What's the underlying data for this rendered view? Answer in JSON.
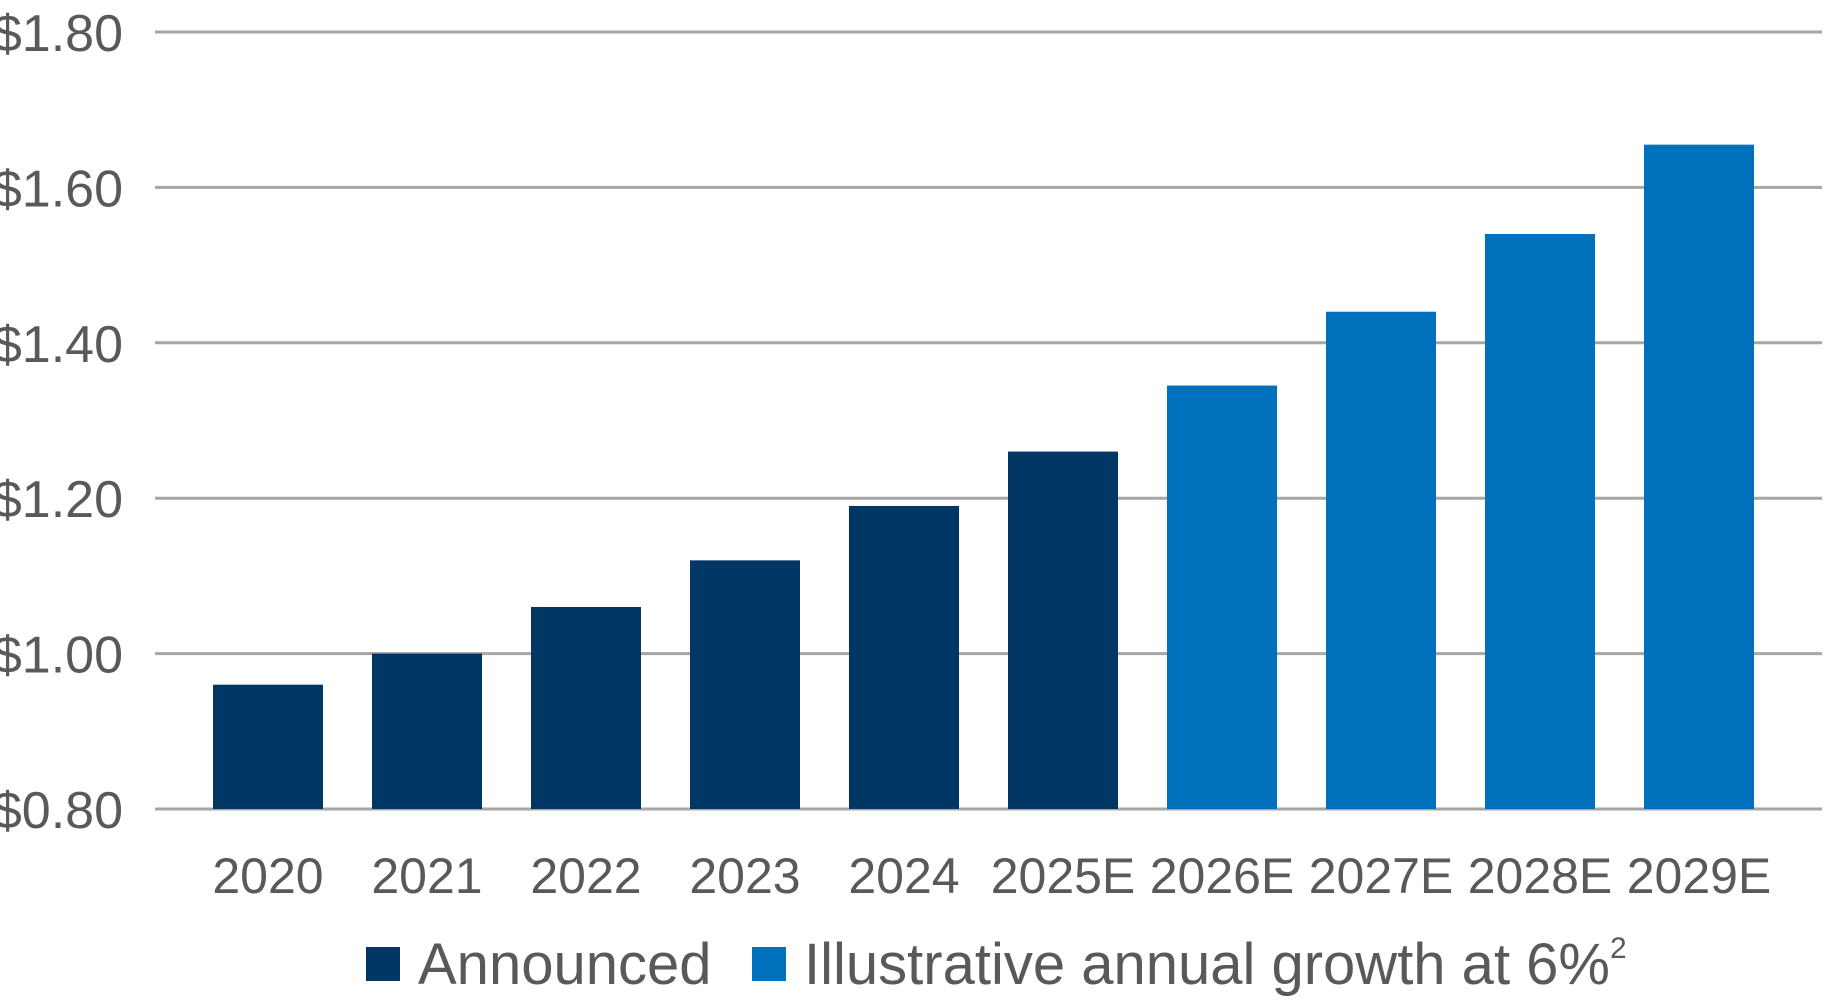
{
  "chart_data": {
    "type": "bar",
    "title": "",
    "xlabel": "",
    "ylabel": "",
    "ylim": [
      0.8,
      1.8
    ],
    "yticks": [
      0.8,
      1.0,
      1.2,
      1.4,
      1.6,
      1.8
    ],
    "ytick_labels": [
      "$0.80",
      "$1.00",
      "$1.20",
      "$1.40",
      "$1.60",
      "$1.80"
    ],
    "grid": true,
    "categories": [
      "2020",
      "2021",
      "2022",
      "2023",
      "2024",
      "2025E",
      "2026E",
      "2027E",
      "2028E",
      "2029E"
    ],
    "values": [
      0.96,
      1.0,
      1.06,
      1.12,
      1.19,
      1.26,
      1.345,
      1.44,
      1.54,
      1.655
    ],
    "bar_series": [
      "announced",
      "announced",
      "announced",
      "announced",
      "announced",
      "announced",
      "growth",
      "growth",
      "growth",
      "growth"
    ],
    "series": [
      {
        "key": "announced",
        "name": "Announced",
        "color": "#003764"
      },
      {
        "key": "growth",
        "name": "Illustrative annual growth at 6%",
        "superscript": "2",
        "color": "#0071bc"
      }
    ],
    "legend_position": "bottom"
  },
  "colors": {
    "gridline": "#a6a6a6",
    "axis_text": "#595959"
  }
}
